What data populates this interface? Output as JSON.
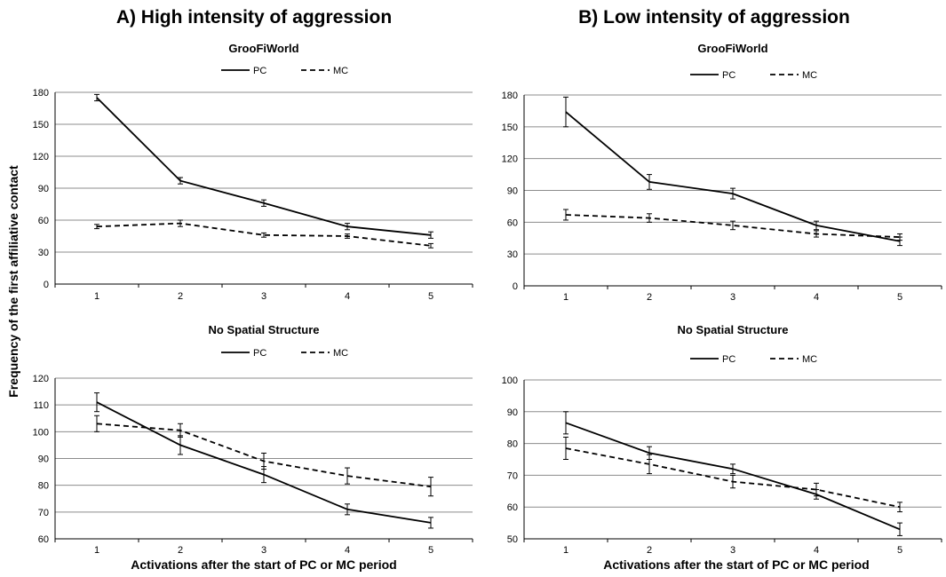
{
  "figure": {
    "panel_a_title": "A) High intensity of aggression",
    "panel_b_title": "B) Low intensity of aggression",
    "ylabel": "Frequency of the first affiliative contact",
    "xlabel": "Activations after the start of PC or MC period"
  },
  "chart_data": [
    {
      "type": "line",
      "title": "GrooFiWorld",
      "panel": "A) High intensity of aggression",
      "categories": [
        "1",
        "2",
        "3",
        "4",
        "5"
      ],
      "x": [
        1,
        2,
        3,
        4,
        5
      ],
      "ylim": [
        0,
        180
      ],
      "yticks": [
        0,
        30,
        60,
        90,
        120,
        150,
        180
      ],
      "grid": true,
      "legend": "top-center",
      "series": [
        {
          "name": "PC",
          "style": "solid",
          "values": [
            175,
            97,
            76,
            54,
            46
          ],
          "errors": [
            3,
            3,
            3,
            3,
            3
          ]
        },
        {
          "name": "MC",
          "style": "dashed",
          "values": [
            54,
            57,
            46,
            45,
            36
          ],
          "errors": [
            2,
            3,
            2,
            2,
            2
          ]
        }
      ]
    },
    {
      "type": "line",
      "title": "GrooFiWorld",
      "panel": "B) Low intensity of aggression",
      "categories": [
        "1",
        "2",
        "3",
        "4",
        "5"
      ],
      "x": [
        1,
        2,
        3,
        4,
        5
      ],
      "ylim": [
        0,
        180
      ],
      "yticks": [
        0,
        30,
        60,
        90,
        120,
        150,
        180
      ],
      "grid": true,
      "legend": "top-center",
      "series": [
        {
          "name": "PC",
          "style": "solid",
          "values": [
            164,
            98,
            87,
            57,
            42
          ],
          "errors": [
            14,
            7,
            5,
            4,
            4
          ]
        },
        {
          "name": "MC",
          "style": "dashed",
          "values": [
            67,
            64,
            57,
            49,
            46
          ],
          "errors": [
            5,
            4,
            4,
            3,
            3
          ]
        }
      ]
    },
    {
      "type": "line",
      "title": "No Spatial Structure",
      "panel": "A) High intensity of aggression",
      "categories": [
        "1",
        "2",
        "3",
        "4",
        "5"
      ],
      "x": [
        1,
        2,
        3,
        4,
        5
      ],
      "ylim": [
        60,
        120
      ],
      "yticks": [
        60,
        70,
        80,
        90,
        100,
        110,
        120
      ],
      "grid": true,
      "legend": "top-center",
      "series": [
        {
          "name": "PC",
          "style": "solid",
          "values": [
            111,
            95,
            84,
            71,
            66
          ],
          "errors": [
            3.5,
            3.5,
            3,
            2,
            2
          ]
        },
        {
          "name": "MC",
          "style": "dashed",
          "values": [
            103,
            100.5,
            89,
            83.5,
            79.5
          ],
          "errors": [
            3,
            2.5,
            3,
            3,
            3.5
          ]
        }
      ]
    },
    {
      "type": "line",
      "title": "No Spatial Structure",
      "panel": "B) Low intensity of aggression",
      "categories": [
        "1",
        "2",
        "3",
        "4",
        "5"
      ],
      "x": [
        1,
        2,
        3,
        4,
        5
      ],
      "ylim": [
        50,
        100
      ],
      "yticks": [
        50,
        60,
        70,
        80,
        90,
        100
      ],
      "grid": true,
      "legend": "top-center",
      "series": [
        {
          "name": "PC",
          "style": "solid",
          "values": [
            86.5,
            77,
            72,
            64,
            53
          ],
          "errors": [
            3.5,
            2,
            1.5,
            1.5,
            2
          ]
        },
        {
          "name": "MC",
          "style": "dashed",
          "values": [
            78.5,
            73.5,
            68,
            65.5,
            60
          ],
          "errors": [
            3.5,
            3,
            2,
            2,
            1.5
          ]
        }
      ]
    }
  ]
}
